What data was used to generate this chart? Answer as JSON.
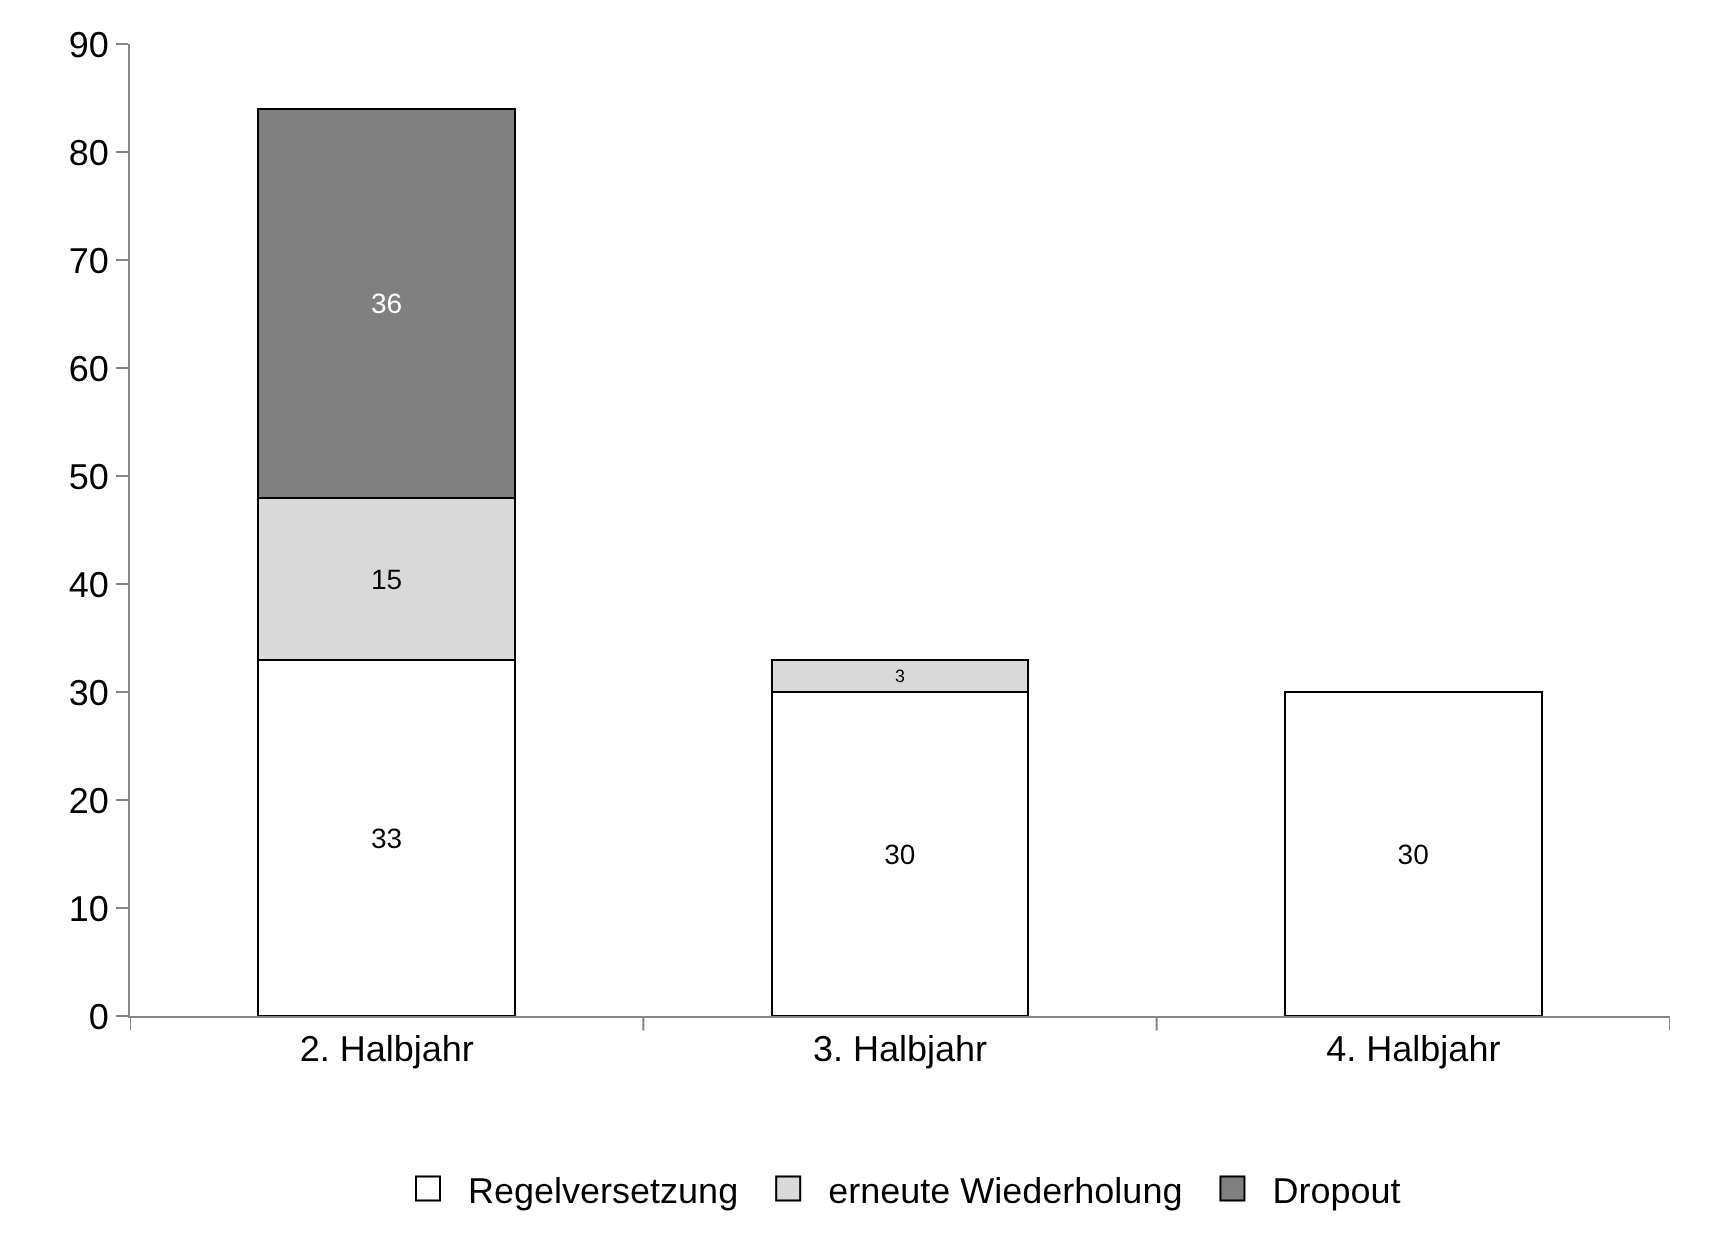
{
  "chart_data": {
    "type": "bar",
    "stacked": true,
    "categories": [
      "2. Halbjahr",
      "3. Halbjahr",
      "4. Halbjahr"
    ],
    "series": [
      {
        "name": "Regelversetzung",
        "color": "#ffffff",
        "values": [
          33,
          30,
          30
        ]
      },
      {
        "name": "erneute Wiederholung",
        "color": "#d9d9d9",
        "values": [
          15,
          3,
          null
        ]
      },
      {
        "name": "Dropout",
        "color": "#808080",
        "values": [
          36,
          null,
          null
        ]
      }
    ],
    "ylim": [
      0,
      90
    ],
    "yticks": [
      0,
      10,
      20,
      30,
      40,
      50,
      60,
      70,
      80,
      90
    ],
    "grid": false,
    "legend": "bottom",
    "data_labels": true
  }
}
